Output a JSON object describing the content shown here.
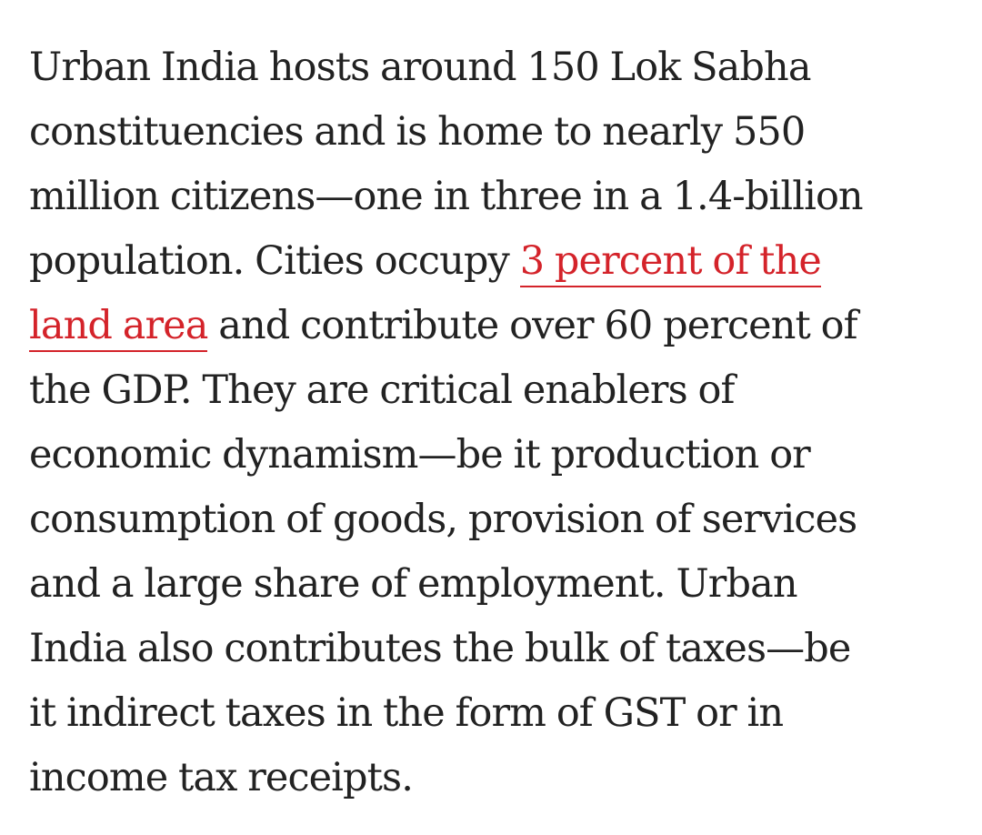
{
  "article": {
    "lines": [
      "Urban India hosts around 150 Lok Sabha",
      "constituencies and is home to nearly 550",
      "million citizens—one in three in a 1.4-billion",
      {
        "before": "population. Cities occupy ",
        "link": "3 percent of the",
        "after": ""
      },
      {
        "before": "",
        "link": "land area",
        "after": " and contribute over 60 percent of"
      },
      "the GDP. They are critical enablers of",
      "economic dynamism—be it production or",
      "consumption of goods, provision of services",
      "and a large share of employment. Urban",
      "India also contributes the bulk of taxes—be",
      "it indirect taxes in the form of GST or in",
      "income tax receipts."
    ],
    "link_color": "#d4232a",
    "text_color": "#222222"
  }
}
